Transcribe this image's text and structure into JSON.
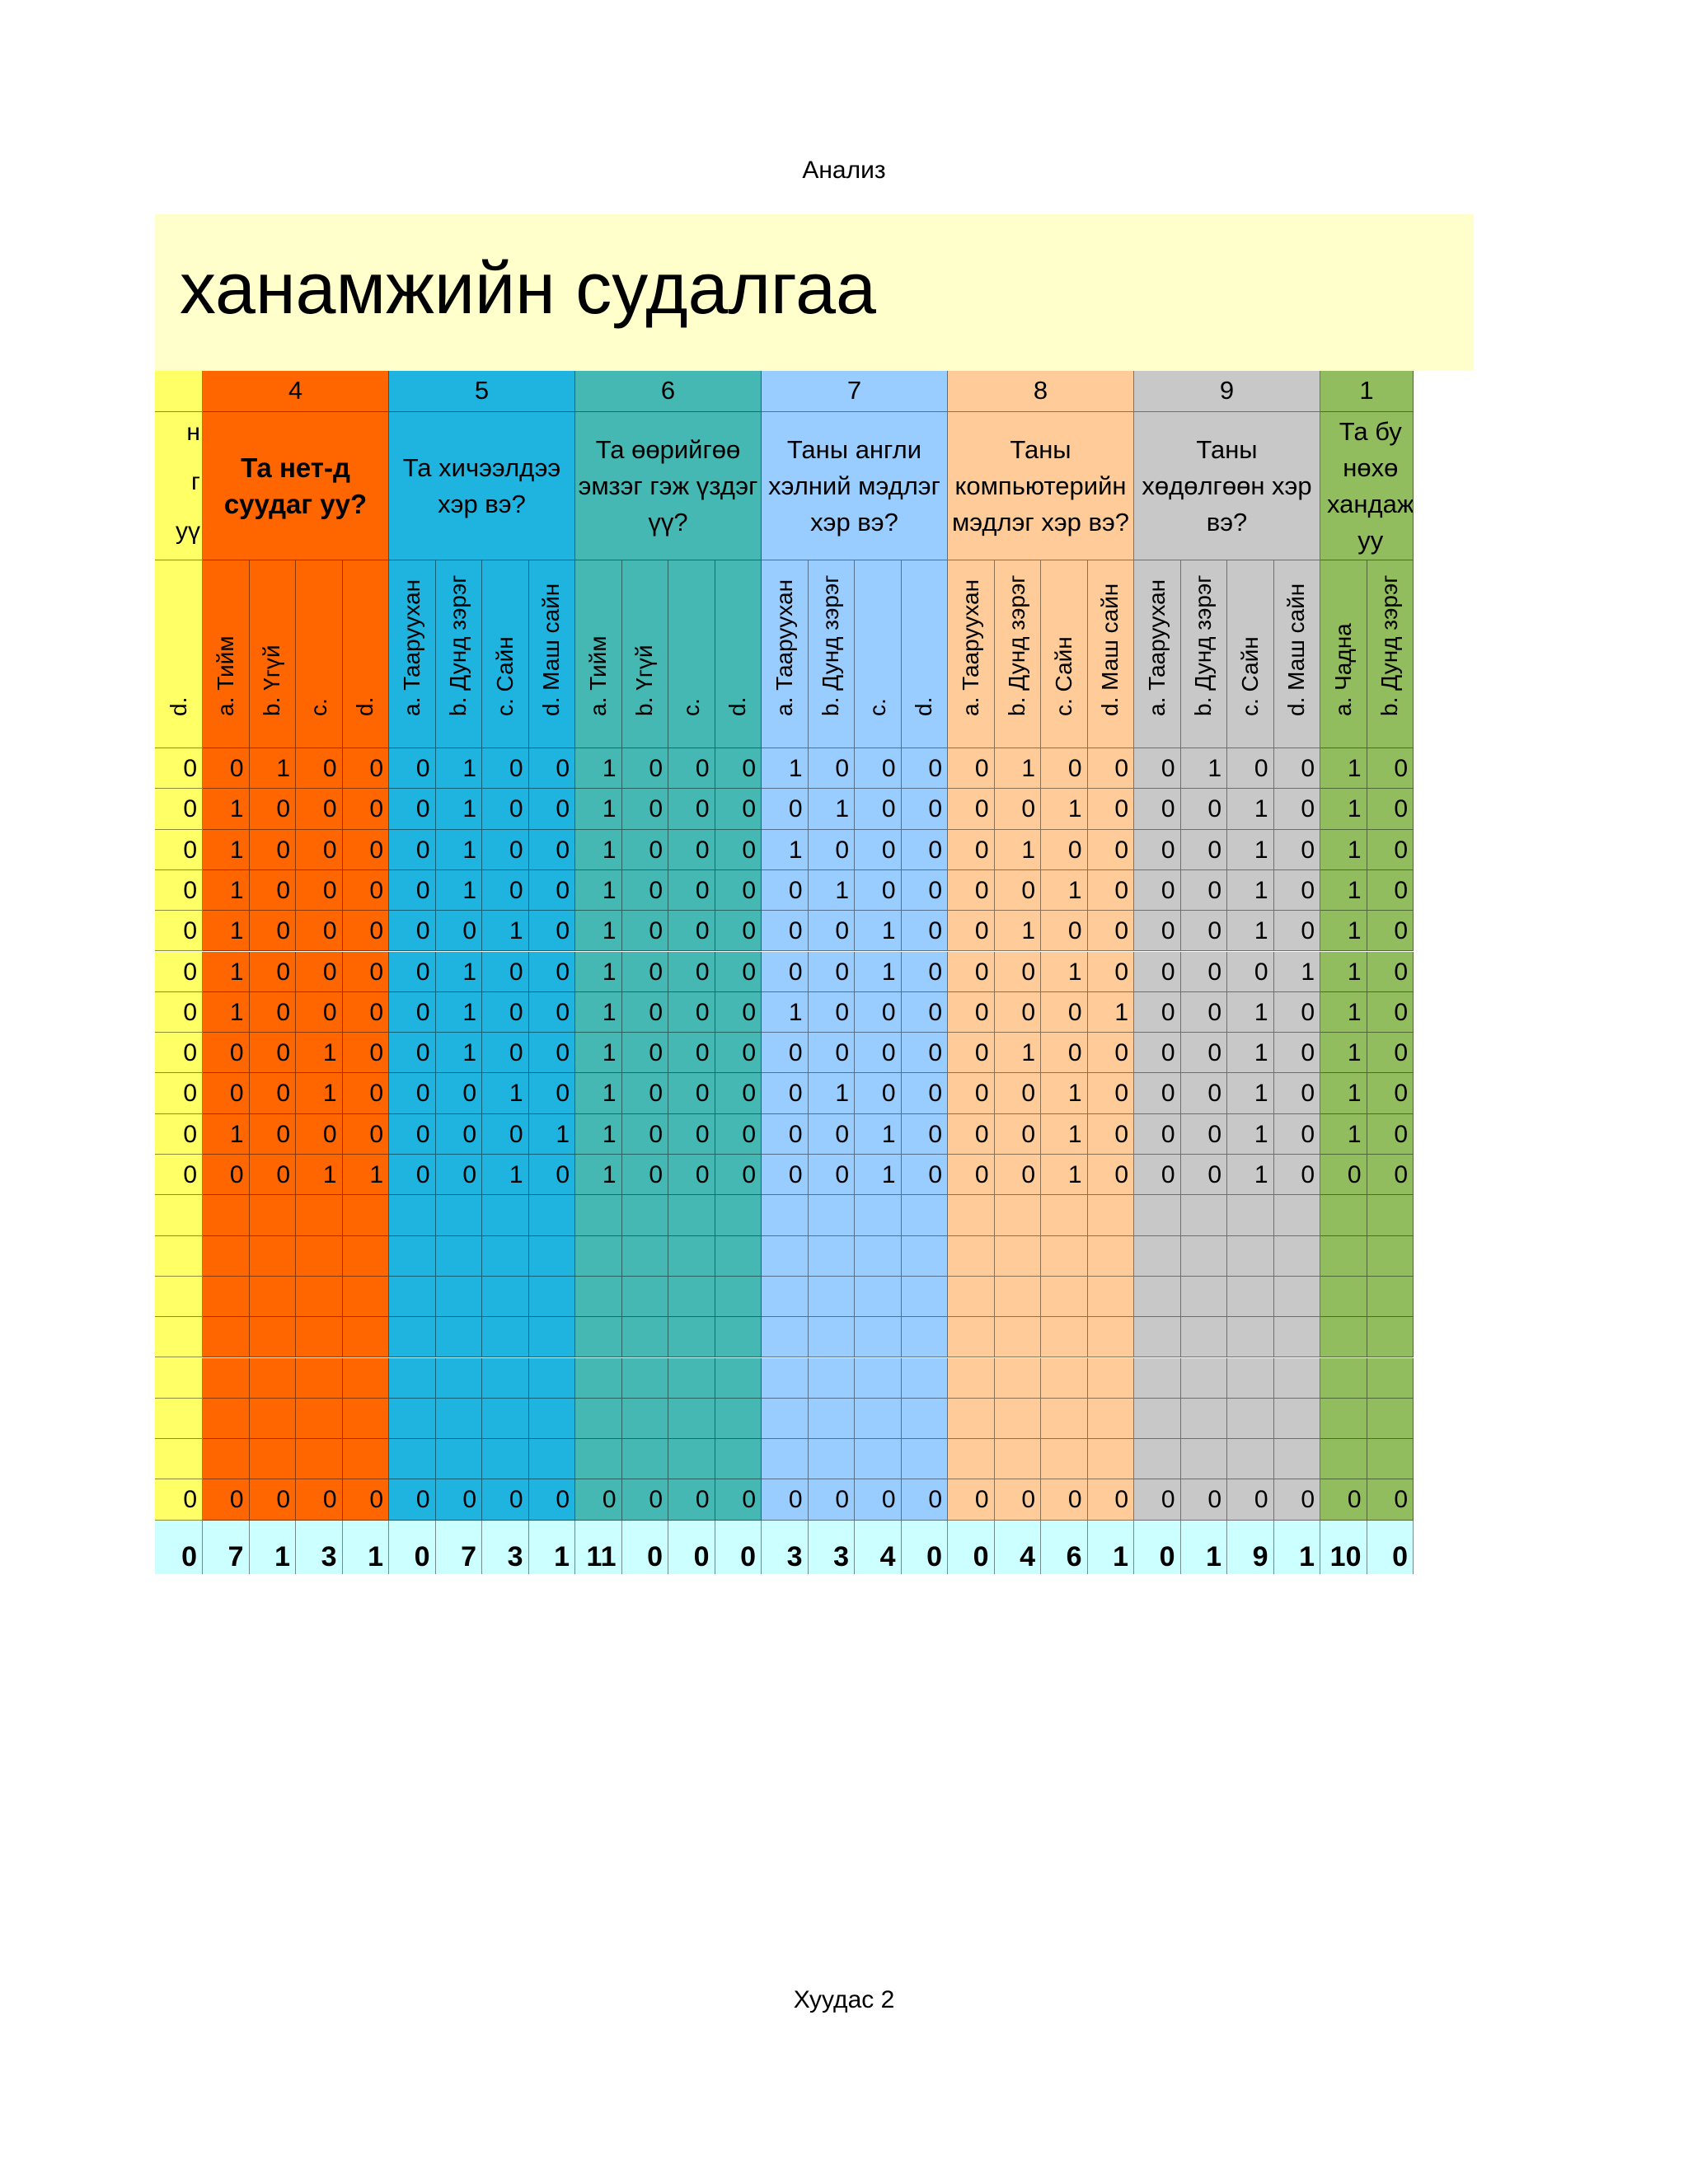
{
  "page": {
    "header": "Анализ",
    "footer": "Хуудас 2"
  },
  "title": "ханамжийн судалгаа",
  "colors": {
    "title_bg": "#ffffcc",
    "summary_bg": "#ccffff"
  },
  "partial_left": {
    "color": "#ffff66",
    "question_fragments": [
      "н",
      "г",
      "уү"
    ],
    "option": "d.",
    "values": [
      0,
      0,
      0,
      0,
      0,
      0,
      0,
      0,
      0,
      0,
      0
    ],
    "total": 0,
    "summary": 0
  },
  "groups": [
    {
      "num": "4",
      "color": "#ff6600",
      "bold": true,
      "question": "Та нет-д суудаг уу?",
      "options": [
        "a. Тийм",
        "b. Үгүй",
        "c.",
        "d."
      ],
      "rows": [
        [
          0,
          1,
          0,
          0
        ],
        [
          1,
          0,
          0,
          0
        ],
        [
          1,
          0,
          0,
          0
        ],
        [
          1,
          0,
          0,
          0
        ],
        [
          1,
          0,
          0,
          0
        ],
        [
          1,
          0,
          0,
          0
        ],
        [
          1,
          0,
          0,
          0
        ],
        [
          0,
          0,
          1,
          0
        ],
        [
          0,
          0,
          1,
          0
        ],
        [
          1,
          0,
          0,
          0
        ],
        [
          0,
          0,
          1,
          1
        ]
      ],
      "totals": [
        0,
        0,
        0,
        0
      ],
      "summary": [
        7,
        1,
        3,
        1
      ]
    },
    {
      "num": "5",
      "color": "#1fb4e0",
      "bold": false,
      "question": "Та хичээлдээ хэр вэ?",
      "options": [
        "a. Тааруухан",
        "b. Дунд зэрэг",
        "c. Сайн",
        "d. Маш сайн"
      ],
      "rows": [
        [
          0,
          1,
          0,
          0
        ],
        [
          0,
          1,
          0,
          0
        ],
        [
          0,
          1,
          0,
          0
        ],
        [
          0,
          1,
          0,
          0
        ],
        [
          0,
          0,
          1,
          0
        ],
        [
          0,
          1,
          0,
          0
        ],
        [
          0,
          1,
          0,
          0
        ],
        [
          0,
          1,
          0,
          0
        ],
        [
          0,
          0,
          1,
          0
        ],
        [
          0,
          0,
          0,
          1
        ],
        [
          0,
          0,
          1,
          0
        ]
      ],
      "totals": [
        0,
        0,
        0,
        0
      ],
      "summary": [
        0,
        7,
        3,
        1
      ]
    },
    {
      "num": "6",
      "color": "#45b8b3",
      "bold": false,
      "question": "Та өөрийгөө эмзэг гэж үздэг үү?",
      "options": [
        "a. Тийм",
        "b. Үгүй",
        "c.",
        "d."
      ],
      "rows": [
        [
          1,
          0,
          0,
          0
        ],
        [
          1,
          0,
          0,
          0
        ],
        [
          1,
          0,
          0,
          0
        ],
        [
          1,
          0,
          0,
          0
        ],
        [
          1,
          0,
          0,
          0
        ],
        [
          1,
          0,
          0,
          0
        ],
        [
          1,
          0,
          0,
          0
        ],
        [
          1,
          0,
          0,
          0
        ],
        [
          1,
          0,
          0,
          0
        ],
        [
          1,
          0,
          0,
          0
        ],
        [
          1,
          0,
          0,
          0
        ]
      ],
      "totals": [
        0,
        0,
        0,
        0
      ],
      "summary": [
        11,
        0,
        0,
        0
      ]
    },
    {
      "num": "7",
      "color": "#99ccff",
      "bold": false,
      "question": "Таны англи хэлний мэдлэг хэр вэ?",
      "options": [
        "a. Тааруухан",
        "b. Дунд зэрэг",
        "c.",
        "d."
      ],
      "rows": [
        [
          1,
          0,
          0,
          0
        ],
        [
          0,
          1,
          0,
          0
        ],
        [
          1,
          0,
          0,
          0
        ],
        [
          0,
          1,
          0,
          0
        ],
        [
          0,
          0,
          1,
          0
        ],
        [
          0,
          0,
          1,
          0
        ],
        [
          1,
          0,
          0,
          0
        ],
        [
          0,
          0,
          0,
          0
        ],
        [
          0,
          1,
          0,
          0
        ],
        [
          0,
          0,
          1,
          0
        ],
        [
          0,
          0,
          1,
          0
        ]
      ],
      "totals": [
        0,
        0,
        0,
        0
      ],
      "summary": [
        3,
        3,
        4,
        0
      ]
    },
    {
      "num": "8",
      "color": "#ffcc99",
      "bold": false,
      "question": "Таны компьютерийн мэдлэг хэр вэ?",
      "options": [
        "a. Тааруухан",
        "b. Дунд зэрэг",
        "c. Сайн",
        "d. Маш сайн"
      ],
      "rows": [
        [
          0,
          1,
          0,
          0
        ],
        [
          0,
          0,
          1,
          0
        ],
        [
          0,
          1,
          0,
          0
        ],
        [
          0,
          0,
          1,
          0
        ],
        [
          0,
          1,
          0,
          0
        ],
        [
          0,
          0,
          1,
          0
        ],
        [
          0,
          0,
          0,
          1
        ],
        [
          0,
          1,
          0,
          0
        ],
        [
          0,
          0,
          1,
          0
        ],
        [
          0,
          0,
          1,
          0
        ],
        [
          0,
          0,
          1,
          0
        ]
      ],
      "totals": [
        0,
        0,
        0,
        0
      ],
      "summary": [
        0,
        4,
        6,
        1
      ]
    },
    {
      "num": "9",
      "color": "#c8c8c8",
      "bold": false,
      "question": "Таны хөдөлгөөн хэр вэ?",
      "options": [
        "a. Тааруухан",
        "b. Дунд зэрэг",
        "c. Сайн",
        "d. Маш сайн"
      ],
      "rows": [
        [
          0,
          1,
          0,
          0
        ],
        [
          0,
          0,
          1,
          0
        ],
        [
          0,
          0,
          1,
          0
        ],
        [
          0,
          0,
          1,
          0
        ],
        [
          0,
          0,
          1,
          0
        ],
        [
          0,
          0,
          0,
          1
        ],
        [
          0,
          0,
          1,
          0
        ],
        [
          0,
          0,
          1,
          0
        ],
        [
          0,
          0,
          1,
          0
        ],
        [
          0,
          0,
          1,
          0
        ],
        [
          0,
          0,
          1,
          0
        ]
      ],
      "totals": [
        0,
        0,
        0,
        0
      ],
      "summary": [
        0,
        1,
        9,
        1
      ]
    },
    {
      "num": "1",
      "color": "#92bd5e",
      "bold": false,
      "question": "Та бу нөхө хандаж уу",
      "options": [
        "a. Чадна",
        "b. Дунд зэрэг"
      ],
      "rows": [
        [
          1,
          0
        ],
        [
          1,
          0
        ],
        [
          1,
          0
        ],
        [
          1,
          0
        ],
        [
          1,
          0
        ],
        [
          1,
          0
        ],
        [
          1,
          0
        ],
        [
          1,
          0
        ],
        [
          1,
          0
        ],
        [
          1,
          0
        ],
        [
          0,
          0
        ]
      ],
      "totals": [
        0,
        0
      ],
      "summary": [
        10,
        0
      ]
    }
  ]
}
